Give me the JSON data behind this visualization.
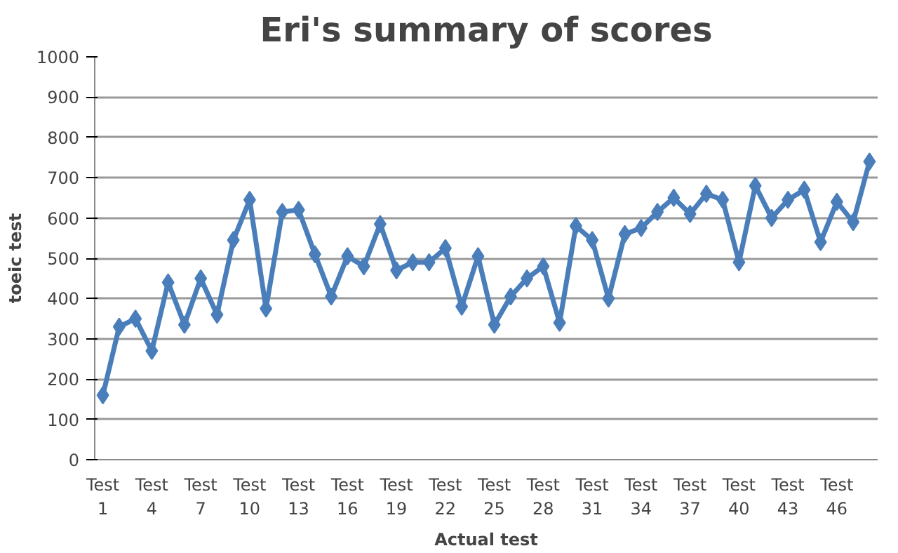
{
  "chart_data": {
    "type": "line",
    "title": "Eri's summary of scores",
    "xlabel": "Actual test",
    "ylabel": "toeic test",
    "categories": [
      "Test 1",
      null,
      null,
      "Test 4",
      null,
      null,
      "Test 7",
      null,
      null,
      "Test 10",
      null,
      null,
      "Test 13",
      null,
      null,
      "Test 16",
      null,
      null,
      "Test 19",
      null,
      null,
      "Test 22",
      null,
      null,
      "Test 25",
      null,
      null,
      "Test 28",
      null,
      null,
      "Test 31",
      null,
      null,
      "Test 34",
      null,
      null,
      "Test 37",
      null,
      null,
      "Test 40",
      null,
      null,
      "Test 43",
      null,
      null,
      "Test 46",
      null,
      null
    ],
    "series": [
      {
        "color": "#4a7ebb",
        "values": [
          160,
          330,
          350,
          270,
          440,
          335,
          450,
          360,
          545,
          645,
          375,
          615,
          620,
          510,
          405,
          505,
          480,
          585,
          470,
          490,
          490,
          525,
          380,
          505,
          335,
          405,
          450,
          480,
          340,
          580,
          545,
          400,
          560,
          575,
          615,
          650,
          610,
          660,
          645,
          490,
          680,
          600,
          645,
          670,
          540,
          640,
          590,
          740
        ]
      }
    ],
    "ylim": [
      0,
      1000
    ],
    "yticks": [
      0,
      100,
      200,
      300,
      400,
      500,
      600,
      700,
      800,
      900,
      1000
    ],
    "grid": "y",
    "marker": "diamond",
    "line_style": "solid"
  }
}
